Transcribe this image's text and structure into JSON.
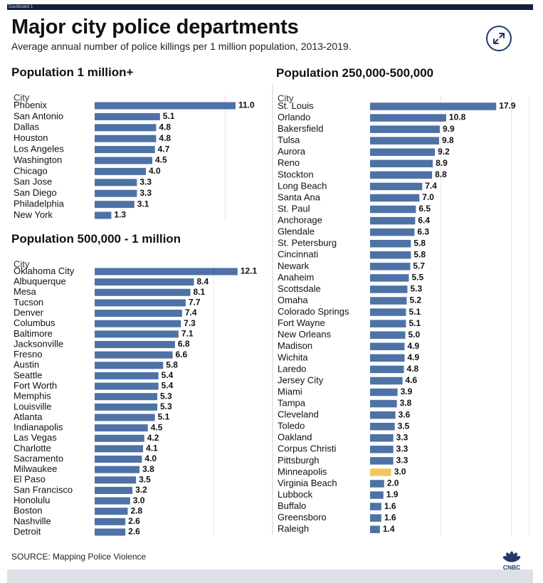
{
  "header": {
    "tab_label": "Dashboard 1",
    "title": "Major city police departments",
    "subtitle": "Average annual number of police killings per 1 million population, 2013-2019."
  },
  "footer": {
    "source": "SOURCE: Mapping Police Violence",
    "logo_text": "CNBC"
  },
  "colors": {
    "bar": "#4e72a6",
    "highlight": "#f0c75e",
    "header_bar": "#13213f",
    "footer_bar": "#dde1e6"
  },
  "chart_data": [
    {
      "type": "bar",
      "orientation": "horizontal",
      "title": "Population 1 million+",
      "category_header": "City",
      "categories": [
        "Phoenix",
        "San Antonio",
        "Dallas",
        "Houston",
        "Los Angeles",
        "Washington",
        "Chicago",
        "San Jose",
        "San Diego",
        "Philadelphia",
        "New York"
      ],
      "values": [
        11.0,
        5.1,
        4.8,
        4.8,
        4.7,
        4.5,
        4.0,
        3.3,
        3.3,
        3.1,
        1.3
      ],
      "value_labels": [
        "11.0",
        "5.1",
        "4.8",
        "4.8",
        "4.7",
        "4.5",
        "4.0",
        "3.3",
        "3.3",
        "3.1",
        "1.3"
      ],
      "grid": true
    },
    {
      "type": "bar",
      "orientation": "horizontal",
      "title": "Population 500,000 - 1 million",
      "category_header": "City",
      "categories": [
        "Oklahoma City",
        "Albuquerque",
        "Mesa",
        "Tucson",
        "Denver",
        "Columbus",
        "Baltimore",
        "Jacksonville",
        "Fresno",
        "Austin",
        "Seattle",
        "Fort Worth",
        "Memphis",
        "Louisville",
        "Atlanta",
        "Indianapolis",
        "Las Vegas",
        "Charlotte",
        "Sacramento",
        "Milwaukee",
        "El Paso",
        "San Francisco",
        "Honolulu",
        "Boston",
        "Nashville",
        "Detroit"
      ],
      "values": [
        12.1,
        8.4,
        8.1,
        7.7,
        7.4,
        7.3,
        7.1,
        6.8,
        6.6,
        5.8,
        5.4,
        5.4,
        5.3,
        5.3,
        5.1,
        4.5,
        4.2,
        4.1,
        4.0,
        3.8,
        3.5,
        3.2,
        3.0,
        2.8,
        2.6,
        2.6
      ],
      "value_labels": [
        "12.1",
        "8.4",
        "8.1",
        "7.7",
        "7.4",
        "7.3",
        "7.1",
        "6.8",
        "6.6",
        "5.8",
        "5.4",
        "5.4",
        "5.3",
        "5.3",
        "5.1",
        "4.5",
        "4.2",
        "4.1",
        "4.0",
        "3.8",
        "3.5",
        "3.2",
        "3.0",
        "2.8",
        "2.6",
        "2.6"
      ],
      "grid": true
    },
    {
      "type": "bar",
      "orientation": "horizontal",
      "title": "Population 250,000-500,000",
      "category_header": "City",
      "categories": [
        "St. Louis",
        "Orlando",
        "Bakersfield",
        "Tulsa",
        "Aurora",
        "Reno",
        "Stockton",
        "Long Beach",
        "Santa Ana",
        "St. Paul",
        "Anchorage",
        "Glendale",
        "St. Petersburg",
        "Cincinnati",
        "Newark",
        "Anaheim",
        "Scottsdale",
        "Omaha",
        "Colorado Springs",
        "Fort Wayne",
        "New Orleans",
        "Madison",
        "Wichita",
        "Laredo",
        "Jersey City",
        "Miami",
        "Tampa",
        "Cleveland",
        "Toledo",
        "Oakland",
        "Corpus Christi",
        "Pittsburgh",
        "Minneapolis",
        "Virginia Beach",
        "Lubbock",
        "Buffalo",
        "Greensboro",
        "Raleigh"
      ],
      "values": [
        17.9,
        10.8,
        9.9,
        9.8,
        9.2,
        8.9,
        8.8,
        7.4,
        7.0,
        6.5,
        6.4,
        6.3,
        5.8,
        5.8,
        5.7,
        5.5,
        5.3,
        5.2,
        5.1,
        5.1,
        5.0,
        4.9,
        4.9,
        4.8,
        4.6,
        3.9,
        3.8,
        3.6,
        3.5,
        3.3,
        3.3,
        3.3,
        3.0,
        2.0,
        1.9,
        1.6,
        1.6,
        1.4
      ],
      "value_labels": [
        "17.9",
        "10.8",
        "9.9",
        "9.8",
        "9.2",
        "8.9",
        "8.8",
        "7.4",
        "7.0",
        "6.5",
        "6.4",
        "6.3",
        "5.8",
        "5.8",
        "5.7",
        "5.5",
        "5.3",
        "5.2",
        "5.1",
        "5.1",
        "5.0",
        "4.9",
        "4.9",
        "4.8",
        "4.6",
        "3.9",
        "3.8",
        "3.6",
        "3.5",
        "3.3",
        "3.3",
        "3.3",
        "3.0",
        "2.0",
        "1.9",
        "1.6",
        "1.6",
        "1.4"
      ],
      "highlighted_category": "Minneapolis",
      "grid": true
    }
  ]
}
